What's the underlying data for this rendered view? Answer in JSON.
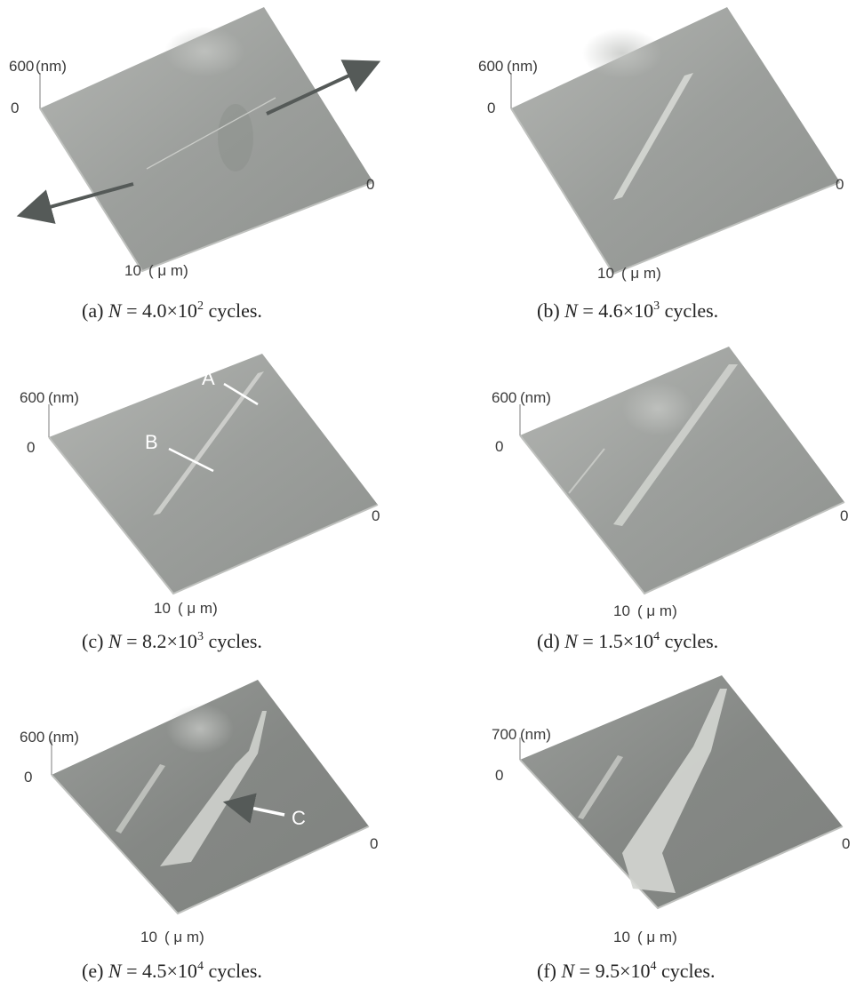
{
  "panels": [
    {
      "id": "a",
      "z_max": "600",
      "z_unit": "(nm)",
      "z_zero": "0",
      "y_zero": "0",
      "x_max": "10",
      "x_unit": "( μ m)",
      "caption": {
        "prefix": "(a) ",
        "var": "N",
        "mid": " = 4.0×10",
        "exp": "2",
        "suffix": " cycles."
      },
      "crack_level": 0,
      "labels": []
    },
    {
      "id": "b",
      "z_max": "600",
      "z_unit": "(nm)",
      "z_zero": "0",
      "y_zero": "0",
      "x_max": "10",
      "x_unit": "( μ m)",
      "caption": {
        "prefix": "(b) ",
        "var": "N",
        "mid": " = 4.6×10",
        "exp": "3",
        "suffix": " cycles."
      },
      "crack_level": 1,
      "labels": []
    },
    {
      "id": "c",
      "z_max": "600",
      "z_unit": "(nm)",
      "z_zero": "0",
      "y_zero": "0",
      "x_max": "10",
      "x_unit": "( μ m)",
      "caption": {
        "prefix": "(c) ",
        "var": "N",
        "mid": " = 8.2×10",
        "exp": "3",
        "suffix": " cycles."
      },
      "crack_level": 2,
      "labels": [
        "A",
        "B"
      ]
    },
    {
      "id": "d",
      "z_max": "600",
      "z_unit": "(nm)",
      "z_zero": "0",
      "y_zero": "0",
      "x_max": "10",
      "x_unit": "( μ m)",
      "caption": {
        "prefix": "(d) ",
        "var": "N",
        "mid": " = 1.5×10",
        "exp": "4",
        "suffix": " cycles."
      },
      "crack_level": 3,
      "labels": []
    },
    {
      "id": "e",
      "z_max": "600",
      "z_unit": "(nm)",
      "z_zero": "0",
      "y_zero": "0",
      "x_max": "10",
      "x_unit": "( μ m)",
      "caption": {
        "prefix": "(e) ",
        "var": "N",
        "mid": " = 4.5×10",
        "exp": "4",
        "suffix": " cycles."
      },
      "crack_level": 4,
      "labels": [
        "C"
      ]
    },
    {
      "id": "f",
      "z_max": "700",
      "z_unit": "(nm)",
      "z_zero": "0",
      "y_zero": "0",
      "x_max": "10",
      "x_unit": "( μ m)",
      "caption": {
        "prefix": "(f) ",
        "var": "N",
        "mid": " = 9.5×10",
        "exp": "4",
        "suffix": " cycles."
      },
      "crack_level": 5,
      "labels": []
    }
  ],
  "colors": {
    "surface_light": "#a9aba8",
    "surface_dark": "#7c7f7c",
    "arrow": "#555a58",
    "crack": "#d6d8d4"
  }
}
